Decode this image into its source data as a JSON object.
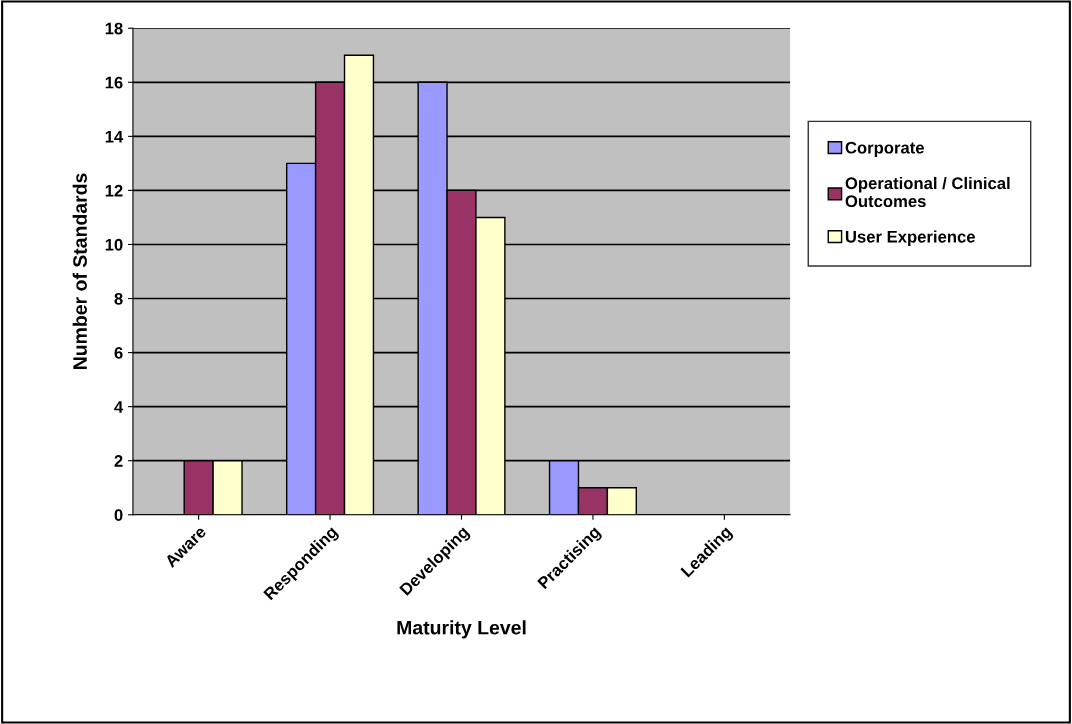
{
  "chart_data": {
    "type": "bar",
    "xlabel": "Maturity Level",
    "ylabel": "Number of Standards",
    "categories": [
      "Aware",
      "Responding",
      "Developing",
      "Practising",
      "Leading"
    ],
    "series": [
      {
        "name": "Corporate",
        "color": "#9999ff",
        "values": [
          0,
          13,
          16,
          2,
          0
        ]
      },
      {
        "name": "Operational / Clinical\nOutcomes",
        "color": "#993366",
        "values": [
          2,
          16,
          12,
          1,
          0
        ]
      },
      {
        "name": "User Experience",
        "color": "#ffffcc",
        "values": [
          2,
          17,
          11,
          1,
          0
        ]
      }
    ],
    "ylim": [
      0,
      18
    ],
    "yticks": [
      0,
      2,
      4,
      6,
      8,
      10,
      12,
      14,
      16,
      18
    ],
    "grid": "y",
    "legend": "right"
  }
}
